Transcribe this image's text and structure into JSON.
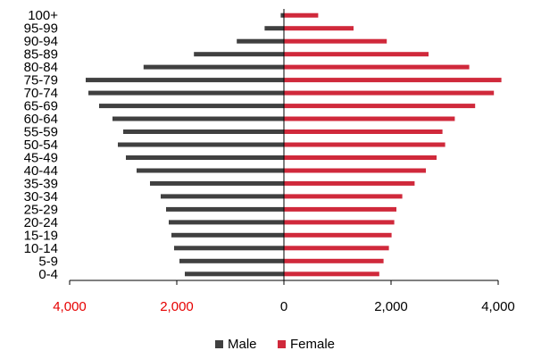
{
  "chart_data": {
    "type": "bar",
    "subtype": "population-pyramid",
    "categories": [
      "0-4",
      "5-9",
      "10-14",
      "15-19",
      "20-24",
      "25-29",
      "30-34",
      "35-39",
      "40-44",
      "45-49",
      "50-54",
      "55-59",
      "60-64",
      "65-69",
      "70-74",
      "75-79",
      "80-84",
      "85-89",
      "90-94",
      "95-99",
      "100+"
    ],
    "series": [
      {
        "name": "Male",
        "color": "#404040",
        "values": [
          1850,
          1950,
          2050,
          2100,
          2150,
          2200,
          2300,
          2500,
          2750,
          2950,
          3100,
          3000,
          3200,
          3450,
          3650,
          3700,
          2620,
          1680,
          880,
          360,
          60
        ]
      },
      {
        "name": "Female",
        "color": "#d0293b",
        "values": [
          1780,
          1860,
          1960,
          2010,
          2060,
          2100,
          2210,
          2440,
          2650,
          2850,
          3010,
          2960,
          3190,
          3570,
          3920,
          4060,
          3460,
          2700,
          1920,
          1300,
          640
        ]
      }
    ],
    "x_ticks": [
      "4,000",
      "2,000",
      "0",
      "2,000",
      "4,000"
    ],
    "x_tick_colors": [
      "#e60000",
      "#e60000",
      "#000000",
      "#000000",
      "#000000"
    ],
    "xlim": [
      -4000,
      4000
    ],
    "grid": false,
    "legend": {
      "position": "bottom",
      "entries": [
        "Male",
        "Female"
      ]
    }
  }
}
